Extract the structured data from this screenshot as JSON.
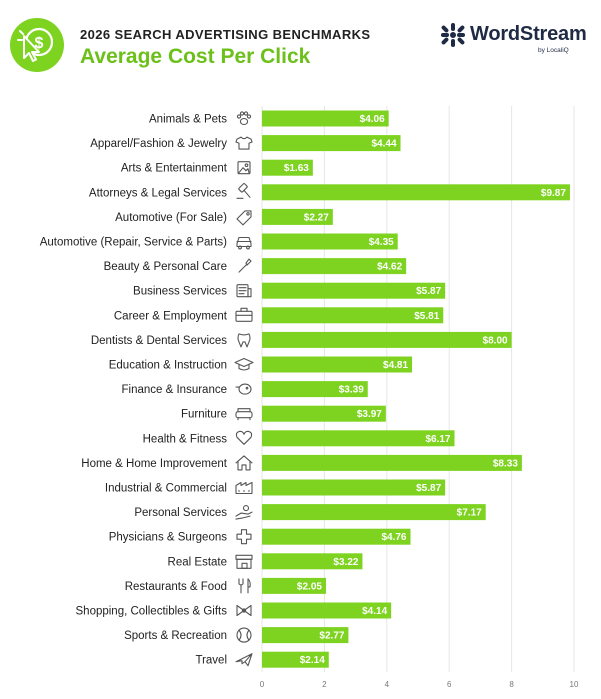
{
  "header": {
    "supertitle": "2026 SEARCH ADVERTISING BENCHMARKS",
    "title": "Average Cost Per Click",
    "brand_name": "WordStream",
    "brand_sub": "by LocaliQ"
  },
  "colors": {
    "bar": "#7ed321",
    "title": "#6cc01a",
    "grid": "#e6e6e6",
    "brand_text": "#1f2a44"
  },
  "chart_data": {
    "type": "bar",
    "orientation": "horizontal",
    "categories": [
      "Animals & Pets",
      "Apparel/Fashion & Jewelry",
      "Arts & Entertainment",
      "Attorneys & Legal Services",
      "Automotive (For Sale)",
      "Automotive (Repair, Service & Parts)",
      "Beauty & Personal Care",
      "Business Services",
      "Career & Employment",
      "Dentists & Dental Services",
      "Education & Instruction",
      "Finance & Insurance",
      "Furniture",
      "Health & Fitness",
      "Home & Home Improvement",
      "Industrial & Commercial",
      "Personal Services",
      "Physicians & Surgeons",
      "Real Estate",
      "Restaurants & Food",
      "Shopping, Collectibles & Gifts",
      "Sports & Recreation",
      "Travel"
    ],
    "values": [
      4.06,
      4.44,
      1.63,
      9.87,
      2.27,
      4.35,
      4.62,
      5.87,
      5.81,
      8.0,
      4.81,
      3.39,
      3.97,
      6.17,
      8.33,
      5.87,
      7.17,
      4.76,
      3.22,
      2.05,
      4.14,
      2.77,
      2.14
    ],
    "value_labels": [
      "$4.06",
      "$4.44",
      "$1.63",
      "$9.87",
      "$2.27",
      "$4.35",
      "$4.62",
      "$5.87",
      "$5.81",
      "$8.00",
      "$4.81",
      "$3.39",
      "$3.97",
      "$6.17",
      "$8.33",
      "$5.87",
      "$7.17",
      "$4.76",
      "$3.22",
      "$2.05",
      "$4.14",
      "$2.77",
      "$2.14"
    ],
    "icons": [
      "paw-icon",
      "shirt-icon",
      "picture-icon",
      "gavel-icon",
      "tag-icon",
      "car-icon",
      "brush-icon",
      "document-icon",
      "briefcase-icon",
      "tooth-icon",
      "graduation-cap-icon",
      "piggy-bank-icon",
      "sofa-icon",
      "heart-icon",
      "house-icon",
      "factory-icon",
      "hand-icon",
      "medical-cross-icon",
      "storefront-icon",
      "utensils-icon",
      "gift-bow-icon",
      "ball-icon",
      "airplane-icon"
    ],
    "xlim": [
      0,
      10
    ],
    "ticks": [
      0,
      2,
      4,
      6,
      8,
      10
    ],
    "tick_labels": [
      "0",
      "2",
      "4",
      "6",
      "8",
      "10"
    ],
    "title": "Average Cost Per Click",
    "xlabel": "",
    "ylabel": "",
    "grid": true
  }
}
